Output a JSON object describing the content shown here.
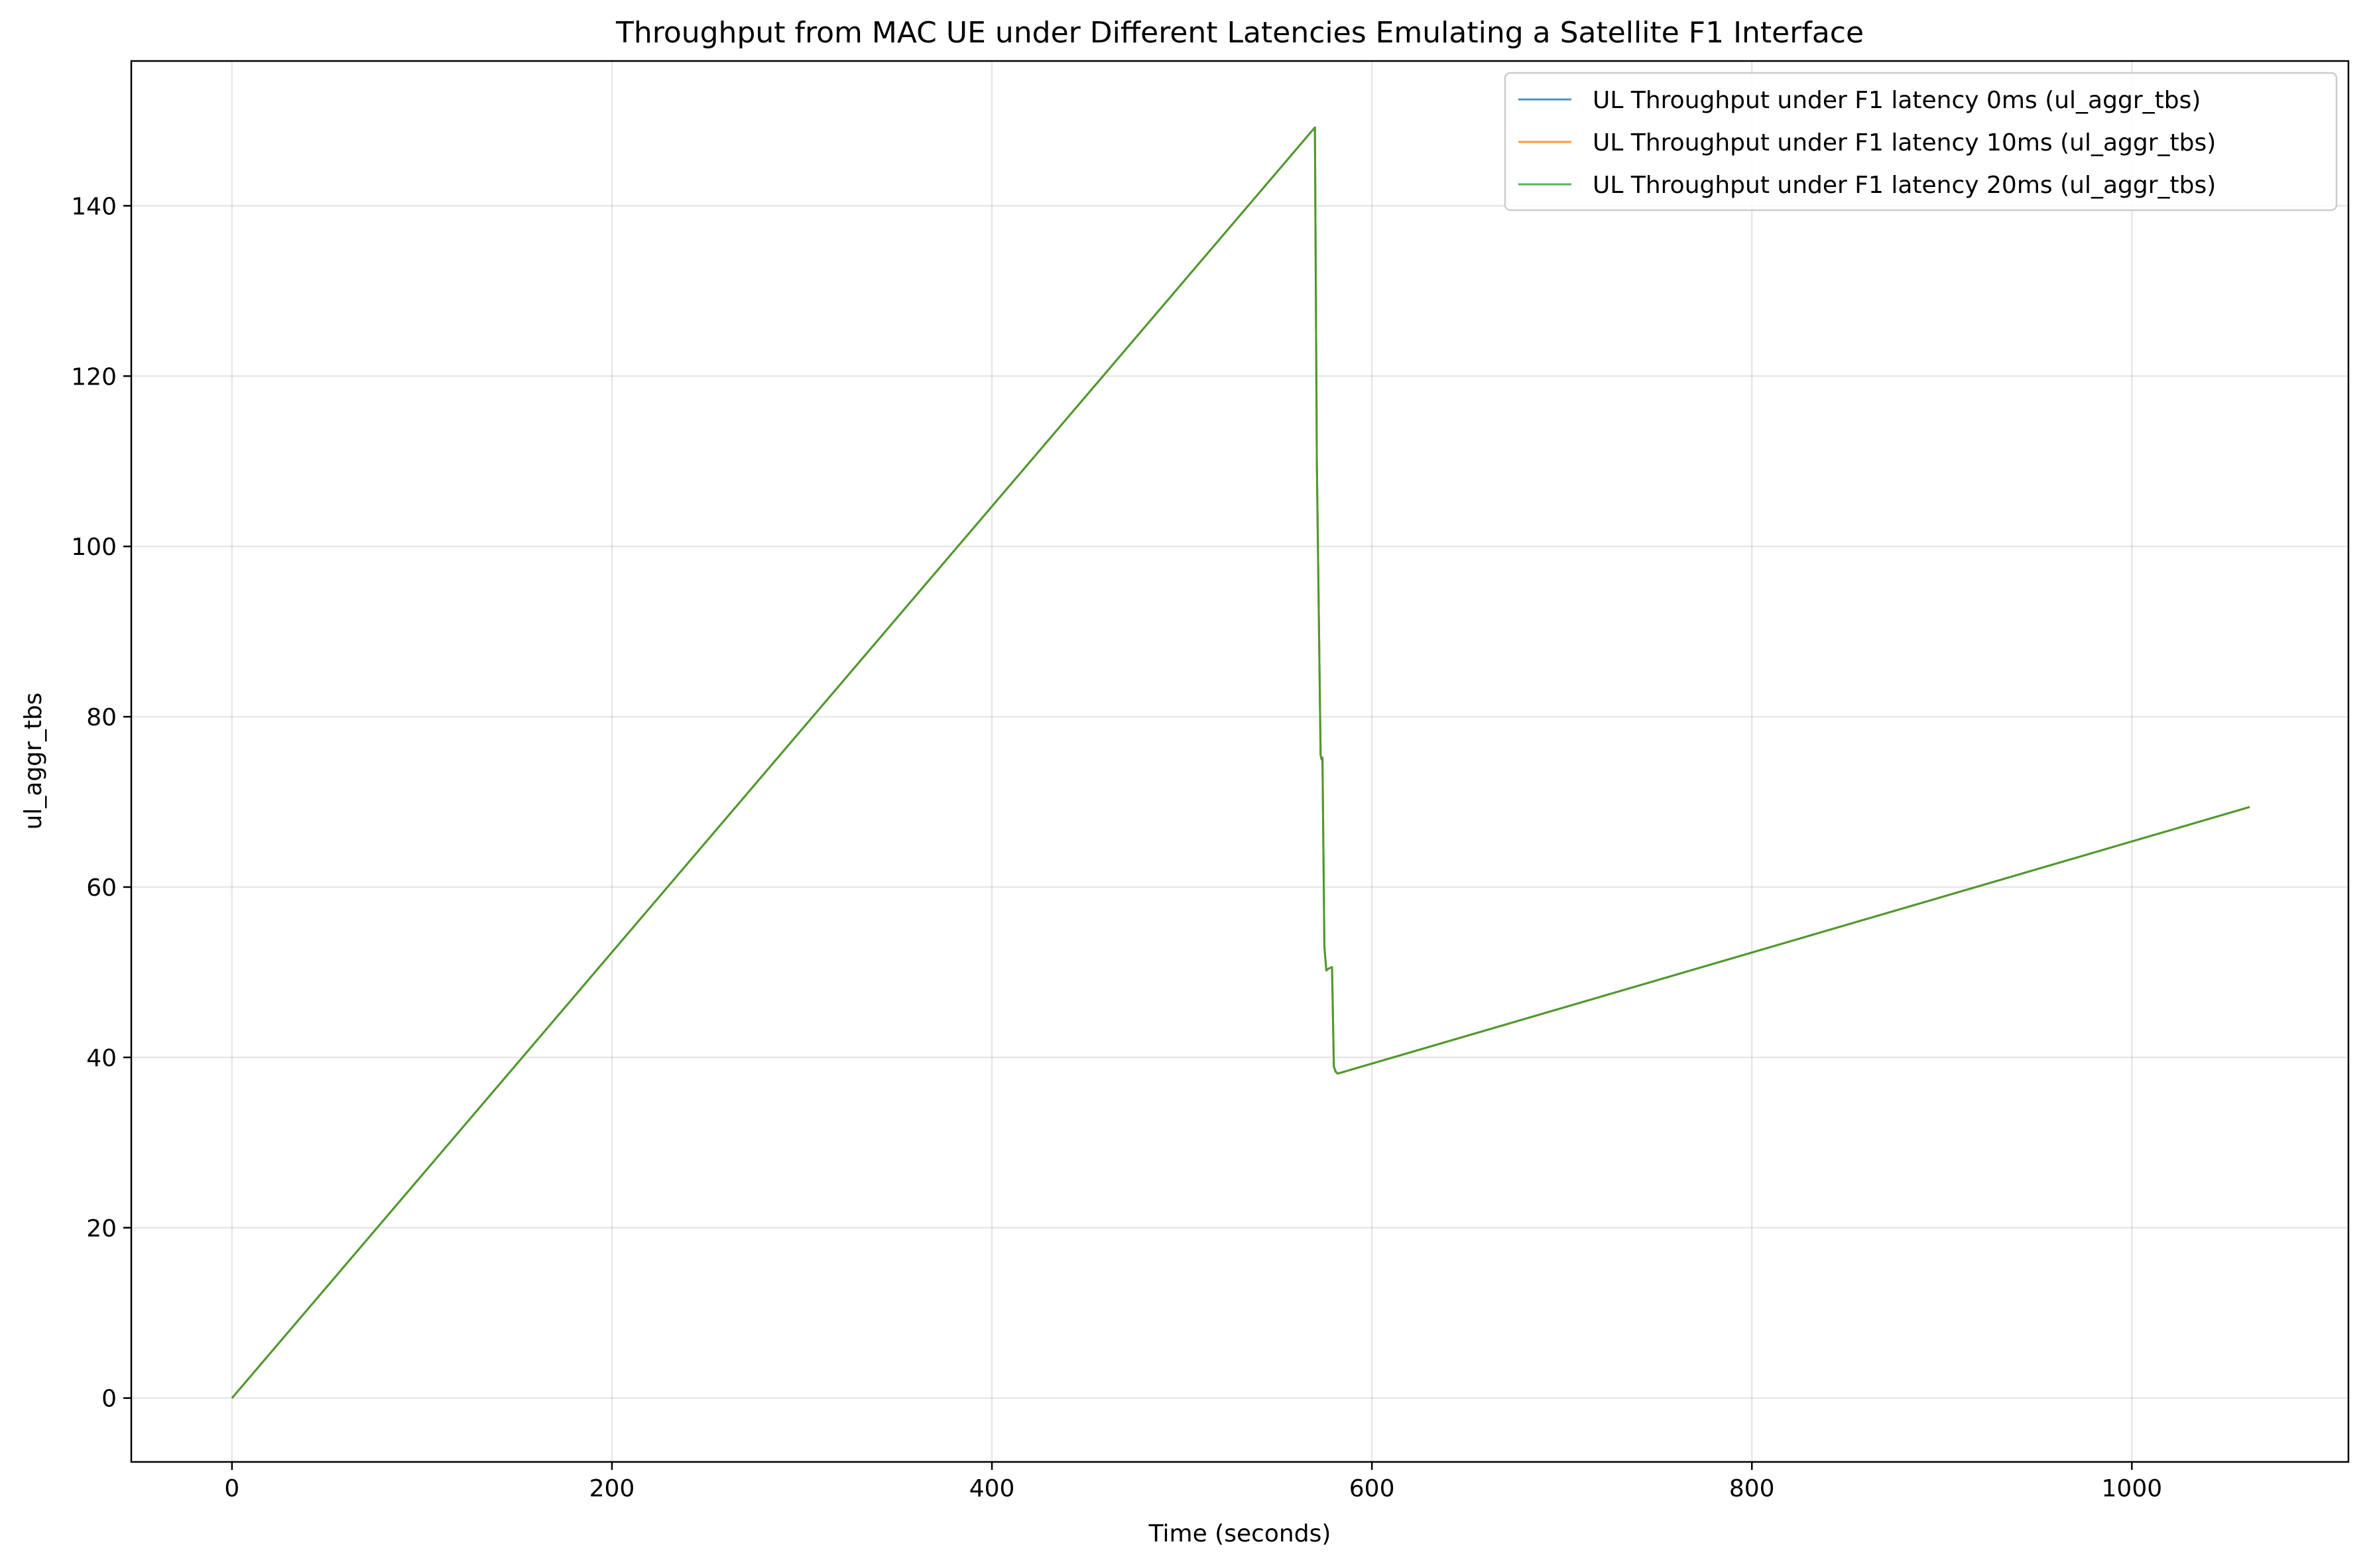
{
  "chart_data": {
    "type": "line",
    "title": "Throughput from MAC UE under Different Latencies Emulating a Satellite F1 Interface",
    "xlabel": "Time (seconds)",
    "ylabel": "ul_aggr_tbs",
    "xlim": [
      -53,
      1114
    ],
    "ylim": [
      -7.5,
      157
    ],
    "xticks": [
      0,
      200,
      400,
      600,
      800,
      1000
    ],
    "yticks": [
      0,
      20,
      40,
      60,
      80,
      100,
      120,
      140
    ],
    "xtick_labels": [
      "0",
      "200",
      "400",
      "600",
      "800",
      "1000"
    ],
    "ytick_labels": [
      "0",
      "20",
      "40",
      "60",
      "80",
      "100",
      "120",
      "140"
    ],
    "grid": true,
    "legend_position": "top-right",
    "series": [
      {
        "name": "UL Throughput under F1 latency 0ms (ul_aggr_tbs)",
        "color": "#1f77b4",
        "x": [
          0,
          570,
          571,
          573,
          573.5,
          574,
          575,
          576,
          577,
          578,
          579,
          580,
          581,
          582,
          1062
        ],
        "y": [
          0,
          149.2,
          110,
          75.5,
          75,
          75.2,
          53,
          50.2,
          50.4,
          50.5,
          50.6,
          38.9,
          38.3,
          38.1,
          69.4
        ]
      },
      {
        "name": "UL Throughput under F1 latency 10ms (ul_aggr_tbs)",
        "color": "#ff7f0e",
        "x": [
          0,
          570,
          571,
          573,
          573.5,
          574,
          575,
          576,
          577,
          578,
          579,
          580,
          581,
          582,
          1062
        ],
        "y": [
          0,
          149.2,
          110,
          75.5,
          75,
          75.2,
          53,
          50.2,
          50.4,
          50.5,
          50.6,
          38.9,
          38.3,
          38.1,
          69.4
        ]
      },
      {
        "name": "UL Throughput under F1 latency 20ms (ul_aggr_tbs)",
        "color": "#2ca02c",
        "x": [
          0,
          570,
          571,
          573,
          573.5,
          574,
          575,
          576,
          577,
          578,
          579,
          580,
          581,
          582,
          1062
        ],
        "y": [
          0,
          149.2,
          110,
          75.5,
          75,
          75.2,
          53,
          50.2,
          50.4,
          50.5,
          50.6,
          38.9,
          38.3,
          38.1,
          69.4
        ]
      }
    ]
  }
}
